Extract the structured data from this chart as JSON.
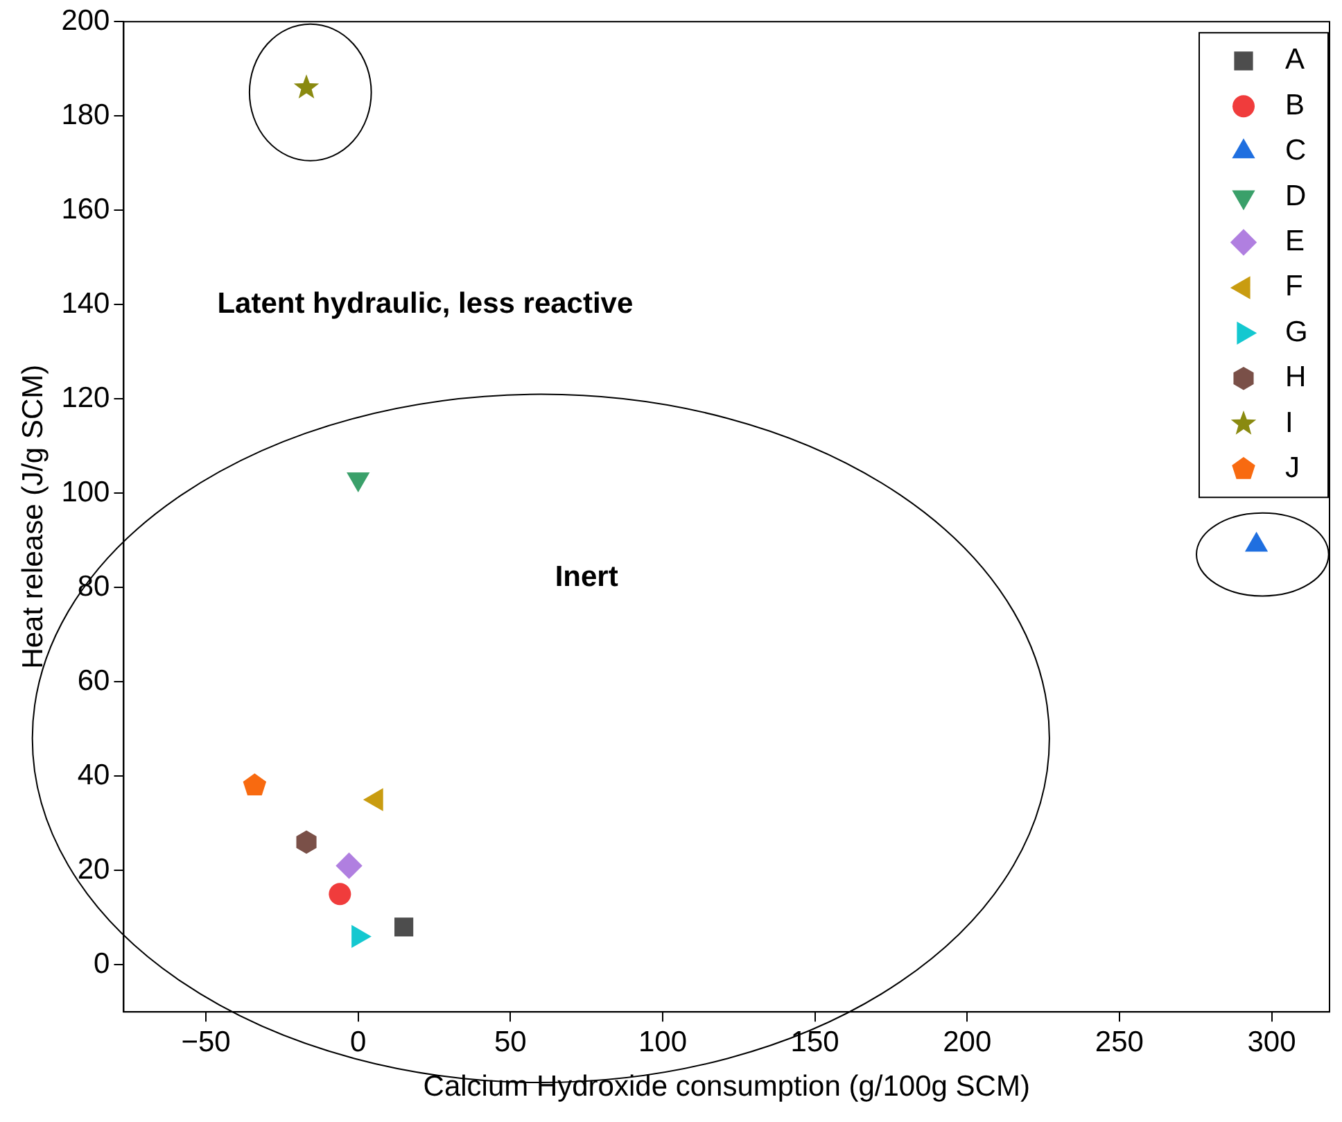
{
  "chart_data": {
    "type": "scatter",
    "xlabel": "Calcium Hydroxide consumption (g/100g SCM)",
    "ylabel": "Heat release (J/g SCM)",
    "xlim": [
      -77,
      319
    ],
    "xticks": [
      -50,
      0,
      50,
      100,
      150,
      200,
      250,
      300
    ],
    "ylim": [
      -10,
      200
    ],
    "yticks": [
      0,
      20,
      40,
      60,
      80,
      100,
      120,
      140,
      160,
      180,
      200
    ],
    "grid": false,
    "legend": "top right",
    "series": [
      {
        "name": "A",
        "color": "#4d4d4d",
        "marker": "square",
        "x": [
          15
        ],
        "values": [
          8
        ]
      },
      {
        "name": "B",
        "color": "#f03c3c",
        "marker": "circle",
        "x": [
          -6
        ],
        "values": [
          15
        ]
      },
      {
        "name": "C",
        "color": "#1f6fe0",
        "marker": "triangle",
        "x": [
          295
        ],
        "values": [
          89
        ]
      },
      {
        "name": "D",
        "color": "#3aa06a",
        "marker": "triangle-down",
        "x": [
          0
        ],
        "values": [
          103
        ]
      },
      {
        "name": "E",
        "color": "#b07fe0",
        "marker": "diamond",
        "x": [
          -3
        ],
        "values": [
          21
        ]
      },
      {
        "name": "F",
        "color": "#c99c10",
        "marker": "triangle-left",
        "x": [
          6
        ],
        "values": [
          35
        ]
      },
      {
        "name": "G",
        "color": "#14c8d0",
        "marker": "triangle-right",
        "x": [
          0
        ],
        "values": [
          6
        ]
      },
      {
        "name": "H",
        "color": "#7a5048",
        "x": [
          -17
        ],
        "values": [
          26
        ]
      },
      {
        "name": "I",
        "color": "#8a8a10",
        "marker": "star",
        "x": [
          -17
        ],
        "values": [
          186
        ]
      },
      {
        "name": "J",
        "color": "#f86a10",
        "x": [
          -34
        ],
        "values": [
          38
        ]
      }
    ],
    "annotations": [
      "Latent hydraulic, less reactive",
      "Inert"
    ]
  }
}
